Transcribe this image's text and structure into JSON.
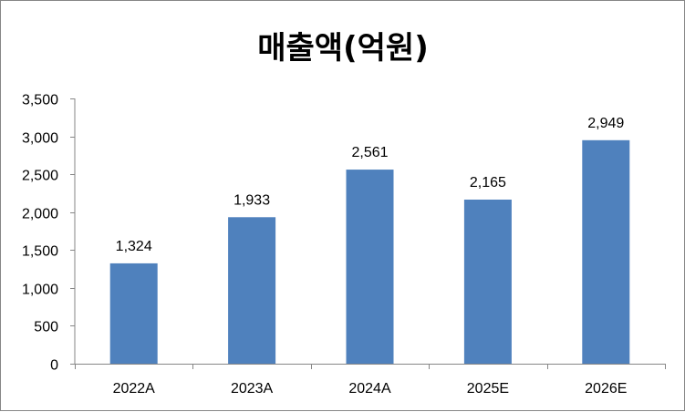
{
  "chart_data": {
    "type": "bar",
    "title": "매출액(억원)",
    "categories": [
      "2022A",
      "2023A",
      "2024A",
      "2025E",
      "2026E"
    ],
    "values": [
      1324,
      1933,
      2561,
      2165,
      2949
    ],
    "value_labels": [
      "1,324",
      "1,933",
      "2,561",
      "2,165",
      "2,949"
    ],
    "ylim": [
      0,
      3500
    ],
    "yticks": [
      0,
      500,
      1000,
      1500,
      2000,
      2500,
      3000,
      3500
    ],
    "ytick_labels": [
      "0",
      "500",
      "1,000",
      "1,500",
      "2,000",
      "2,500",
      "3,000",
      "3,500"
    ],
    "xlabel": "",
    "ylabel": "",
    "grid": false,
    "legend": "none",
    "bar_color": "#4F81BD"
  }
}
